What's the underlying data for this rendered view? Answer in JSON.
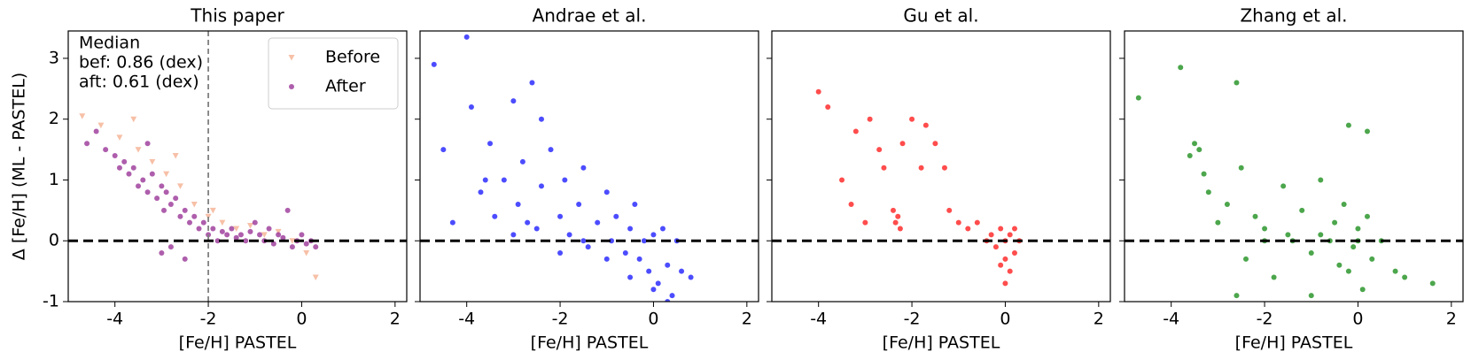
{
  "chart_data": [
    {
      "type": "scatter",
      "title": "This paper",
      "xlabel": "[Fe/H] PASTEL",
      "ylabel": "Δ [Fe/H] (ML - PASTEL)",
      "xlim": [
        -5,
        2.25
      ],
      "ylim": [
        -1,
        3.45
      ],
      "xticks": [
        -4,
        -2,
        0,
        2
      ],
      "yticks": [
        -1,
        0,
        1,
        2,
        3
      ],
      "hline": 0,
      "vline": -2,
      "legend": "upper right",
      "annotation": [
        "Median",
        "bef: 0.86 (dex)",
        "aft: 0.61 (dex)"
      ],
      "series": [
        {
          "name": "Before",
          "color": "#f4a582",
          "marker": "triangle",
          "x": [
            -4.7,
            -4.3,
            -3.9,
            -3.5,
            -3.2,
            -2.9,
            -2.6,
            -2.3,
            -2.0,
            -1.7,
            -1.4,
            -1.1,
            -0.8,
            -0.5,
            -0.2,
            0.1,
            0.3,
            -3.6,
            -2.7,
            -1.9
          ],
          "values": [
            2.05,
            1.9,
            1.7,
            1.5,
            1.3,
            1.1,
            0.9,
            0.6,
            0.4,
            0.3,
            0.2,
            0.25,
            0.1,
            0.15,
            0.0,
            -0.2,
            -0.6,
            2.0,
            1.4,
            0.5
          ]
        },
        {
          "name": "After",
          "color": "#8b1a89",
          "marker": "circle",
          "x": [
            -4.6,
            -4.4,
            -4.2,
            -4.0,
            -3.9,
            -3.8,
            -3.7,
            -3.6,
            -3.5,
            -3.4,
            -3.3,
            -3.2,
            -3.1,
            -3.0,
            -2.95,
            -2.9,
            -2.8,
            -2.7,
            -2.6,
            -2.5,
            -2.4,
            -2.3,
            -2.2,
            -2.1,
            -2.0,
            -1.9,
            -1.8,
            -1.7,
            -1.6,
            -1.5,
            -1.4,
            -1.3,
            -1.2,
            -1.1,
            -1.0,
            -0.9,
            -0.8,
            -0.7,
            -0.6,
            -0.5,
            -0.4,
            -0.3,
            -0.2,
            -0.1,
            0.0,
            0.1,
            0.2,
            0.3,
            -2.8,
            -3.0,
            -2.5,
            -3.3
          ],
          "values": [
            1.6,
            1.8,
            1.5,
            1.4,
            1.2,
            1.3,
            1.1,
            1.2,
            0.9,
            1.0,
            0.8,
            1.1,
            0.7,
            0.9,
            0.5,
            0.8,
            0.6,
            0.7,
            0.4,
            0.5,
            0.3,
            0.4,
            0.2,
            0.3,
            0.1,
            0.2,
            0.0,
            0.15,
            0.1,
            0.2,
            0.05,
            0.1,
            0.0,
            0.15,
            0.3,
            0.1,
            0.0,
            0.2,
            -0.05,
            0.1,
            0.05,
            0.5,
            -0.1,
            0.0,
            0.1,
            -0.05,
            0.0,
            -0.1,
            -0.1,
            -0.2,
            -0.3,
            1.6
          ]
        }
      ]
    },
    {
      "type": "scatter",
      "title": "Andrae et al.",
      "xlabel": "[Fe/H] PASTEL",
      "xlim": [
        -5,
        2.25
      ],
      "ylim": [
        -1,
        3.45
      ],
      "xticks": [
        -4,
        -2,
        0,
        2
      ],
      "yticks": [
        -1,
        0,
        1,
        2,
        3
      ],
      "hline": 0,
      "series": [
        {
          "color": "#0000ff",
          "marker": "circle",
          "x": [
            -4.7,
            -4.5,
            -4.3,
            -4.0,
            -3.9,
            -3.7,
            -3.5,
            -3.4,
            -3.2,
            -3.0,
            -2.9,
            -2.8,
            -2.6,
            -2.5,
            -2.4,
            -2.2,
            -2.0,
            -1.9,
            -1.8,
            -1.6,
            -1.5,
            -1.4,
            -1.2,
            -1.0,
            -0.9,
            -0.8,
            -0.6,
            -0.5,
            -0.4,
            -0.3,
            -0.2,
            -0.1,
            0.0,
            0.1,
            0.2,
            0.3,
            0.4,
            0.5,
            0.6,
            0.8,
            -3.0,
            -2.7,
            -2.0,
            -1.5,
            -1.0,
            -0.5,
            0.0,
            0.3,
            -3.6,
            -2.4
          ],
          "values": [
            2.9,
            1.5,
            0.3,
            3.35,
            2.2,
            0.8,
            1.6,
            0.4,
            1.0,
            2.3,
            0.6,
            1.3,
            2.6,
            0.2,
            0.9,
            1.5,
            0.4,
            1.0,
            0.1,
            0.6,
            1.2,
            -0.1,
            0.3,
            0.8,
            0.0,
            0.4,
            -0.2,
            0.2,
            0.6,
            -0.3,
            0.0,
            -0.5,
            0.1,
            -0.7,
            0.2,
            -0.4,
            -0.9,
            0.0,
            -0.5,
            -0.6,
            0.1,
            0.3,
            -0.2,
            0.0,
            -0.3,
            -0.6,
            -0.8,
            -1.0,
            1.0,
            2.0
          ]
        }
      ]
    },
    {
      "type": "scatter",
      "title": "Gu et al.",
      "xlabel": "[Fe/H] PASTEL",
      "xlim": [
        -5,
        2.25
      ],
      "ylim": [
        -1,
        3.45
      ],
      "xticks": [
        -4,
        -2,
        0,
        2
      ],
      "yticks": [
        -1,
        0,
        1,
        2,
        3
      ],
      "hline": 0,
      "series": [
        {
          "color": "#ff0000",
          "marker": "circle",
          "x": [
            -4.0,
            -3.8,
            -3.5,
            -3.3,
            -3.2,
            -3.0,
            -2.9,
            -2.7,
            -2.6,
            -2.4,
            -2.35,
            -2.3,
            -2.25,
            -2.2,
            -2.0,
            -1.8,
            -1.7,
            -1.5,
            -1.3,
            -1.2,
            -1.0,
            -0.8,
            -0.6,
            -0.4,
            -0.3,
            -0.2,
            -0.1,
            0.0,
            0.0,
            0.1,
            0.2,
            0.3,
            0.1,
            -0.1,
            0.2,
            0.0
          ],
          "values": [
            2.45,
            2.2,
            1.0,
            0.6,
            1.8,
            0.3,
            2.0,
            1.5,
            1.2,
            0.5,
            0.3,
            0.4,
            0.2,
            1.6,
            2.0,
            1.2,
            1.9,
            1.6,
            1.2,
            0.5,
            0.3,
            0.2,
            0.3,
            0.0,
            0.1,
            -0.1,
            0.2,
            0.0,
            -0.3,
            0.1,
            -0.2,
            0.0,
            -0.5,
            -0.4,
            0.2,
            -0.7
          ]
        }
      ]
    },
    {
      "type": "scatter",
      "title": "Zhang et al.",
      "xlabel": "[Fe/H] PASTEL",
      "xlim": [
        -5,
        2.25
      ],
      "ylim": [
        -1,
        3.45
      ],
      "xticks": [
        -4,
        -2,
        0,
        2
      ],
      "yticks": [
        -1,
        0,
        1,
        2,
        3
      ],
      "hline": 0,
      "series": [
        {
          "color": "#008000",
          "marker": "circle",
          "x": [
            -4.7,
            -3.8,
            -3.6,
            -3.4,
            -3.2,
            -3.0,
            -2.8,
            -2.6,
            -2.5,
            -2.4,
            -2.2,
            -2.0,
            -1.8,
            -1.6,
            -1.4,
            -1.2,
            -1.0,
            -0.8,
            -0.6,
            -0.5,
            -0.4,
            -0.3,
            -0.2,
            -0.1,
            0.0,
            0.1,
            0.2,
            0.3,
            0.5,
            0.8,
            1.0,
            1.6,
            -2.6,
            -3.3,
            -1.5,
            -0.2,
            0.2,
            -0.8,
            -2.0,
            -3.5,
            -1.0,
            0.0
          ],
          "values": [
            2.35,
            2.85,
            1.4,
            1.5,
            0.8,
            0.3,
            0.6,
            2.6,
            1.2,
            -0.3,
            0.4,
            0.2,
            -0.6,
            0.9,
            0.0,
            0.5,
            -0.2,
            1.0,
            0.0,
            0.3,
            -0.4,
            0.6,
            1.9,
            -0.1,
            0.2,
            -0.8,
            0.4,
            -0.3,
            0.0,
            -0.5,
            -0.6,
            -0.7,
            -0.9,
            1.1,
            0.1,
            -0.5,
            1.8,
            0.1,
            0.0,
            1.6,
            -0.9,
            0.0
          ]
        }
      ]
    }
  ]
}
